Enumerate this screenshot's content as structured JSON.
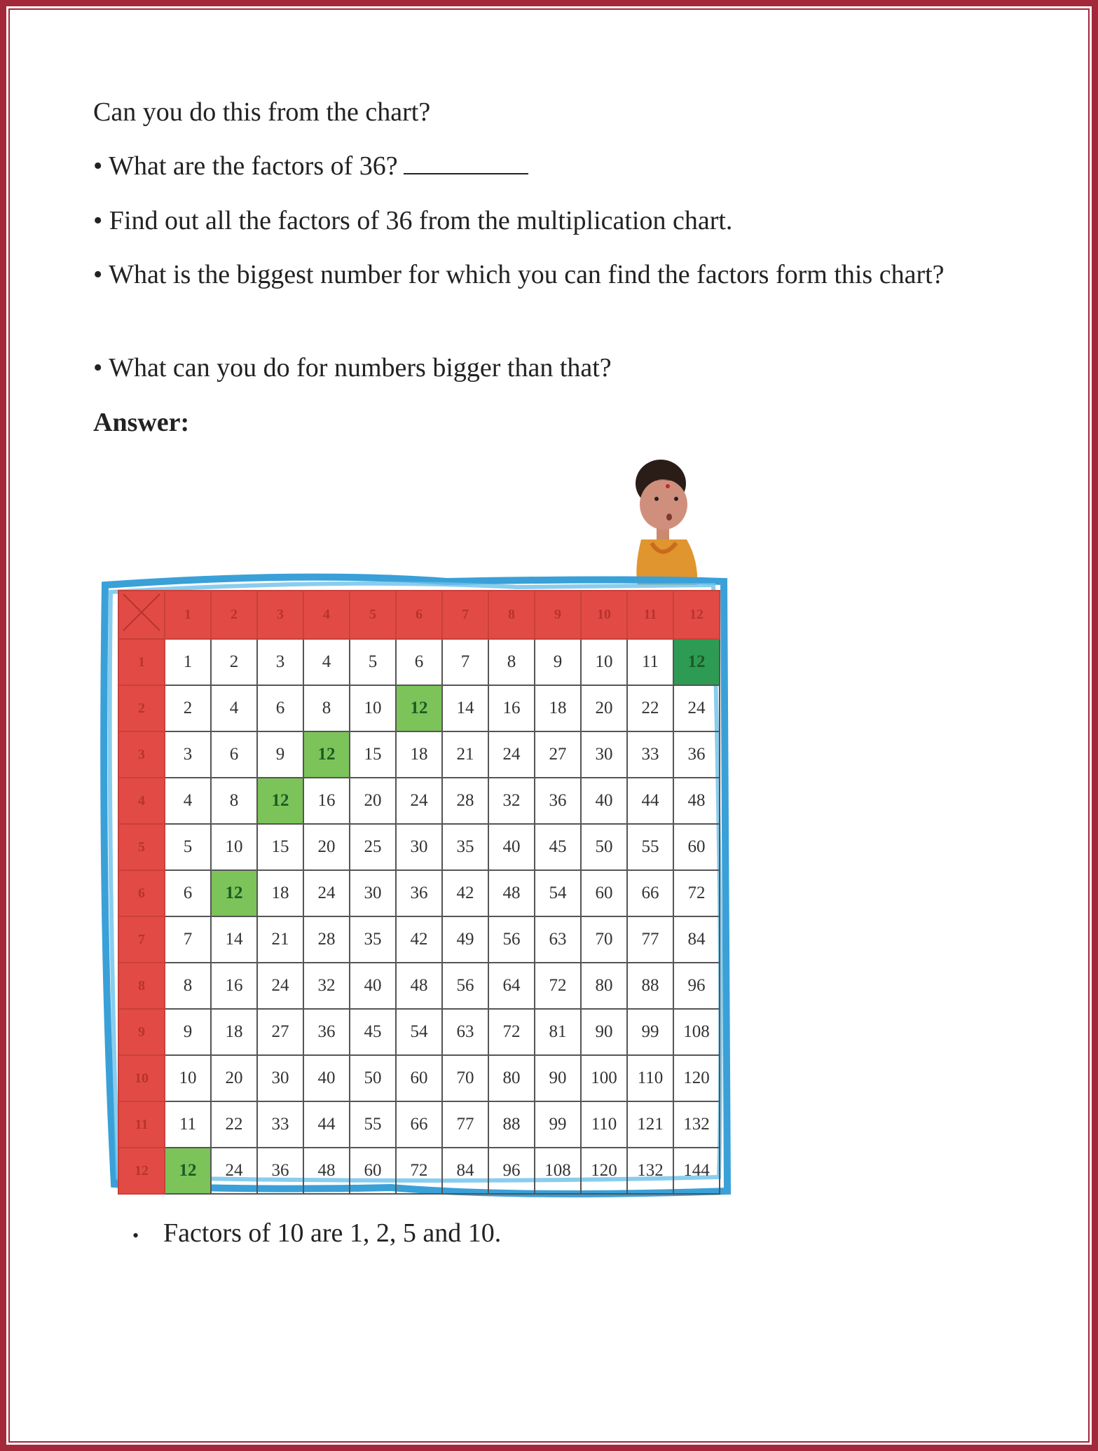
{
  "questions": {
    "intro": "Can you do this from the chart?",
    "items": [
      "• What are the factors of 36?",
      "• Find out all the factors of 36 from the multiplication chart.",
      "• What is the biggest number for which you can find the factors form this chart?",
      "• What can you do for numbers bigger than that?"
    ],
    "answer_label": "Answer:"
  },
  "chart": {
    "column_headers": [
      "1",
      "2",
      "3",
      "4",
      "5",
      "6",
      "7",
      "8",
      "9",
      "10",
      "11",
      "12"
    ],
    "row_headers": [
      "1",
      "2",
      "3",
      "4",
      "5",
      "6",
      "7",
      "8",
      "9",
      "10",
      "11",
      "12"
    ],
    "rows": [
      [
        "1",
        "2",
        "3",
        "4",
        "5",
        "6",
        "7",
        "8",
        "9",
        "10",
        "11",
        "12"
      ],
      [
        "2",
        "4",
        "6",
        "8",
        "10",
        "12",
        "14",
        "16",
        "18",
        "20",
        "22",
        "24"
      ],
      [
        "3",
        "6",
        "9",
        "12",
        "15",
        "18",
        "21",
        "24",
        "27",
        "30",
        "33",
        "36"
      ],
      [
        "4",
        "8",
        "12",
        "16",
        "20",
        "24",
        "28",
        "32",
        "36",
        "40",
        "44",
        "48"
      ],
      [
        "5",
        "10",
        "15",
        "20",
        "25",
        "30",
        "35",
        "40",
        "45",
        "50",
        "55",
        "60"
      ],
      [
        "6",
        "12",
        "18",
        "24",
        "30",
        "36",
        "42",
        "48",
        "54",
        "60",
        "66",
        "72"
      ],
      [
        "7",
        "14",
        "21",
        "28",
        "35",
        "42",
        "49",
        "56",
        "63",
        "70",
        "77",
        "84"
      ],
      [
        "8",
        "16",
        "24",
        "32",
        "40",
        "48",
        "56",
        "64",
        "72",
        "80",
        "88",
        "96"
      ],
      [
        "9",
        "18",
        "27",
        "36",
        "45",
        "54",
        "63",
        "72",
        "81",
        "90",
        "99",
        "108"
      ],
      [
        "10",
        "20",
        "30",
        "40",
        "50",
        "60",
        "70",
        "80",
        "90",
        "100",
        "110",
        "120"
      ],
      [
        "11",
        "22",
        "33",
        "44",
        "55",
        "66",
        "77",
        "88",
        "99",
        "110",
        "121",
        "132"
      ],
      [
        "12",
        "24",
        "36",
        "48",
        "60",
        "72",
        "84",
        "96",
        "108",
        "120",
        "132",
        "144"
      ]
    ],
    "highlighted_cells_light": [
      [
        2,
        6
      ],
      [
        3,
        4
      ],
      [
        4,
        3
      ],
      [
        6,
        2
      ],
      [
        12,
        1
      ]
    ],
    "highlighted_cells_dark": [
      [
        1,
        12
      ]
    ],
    "colors": {
      "header": "#e24b45",
      "highlight_light": "#7cc35a",
      "highlight_dark": "#2e9b55",
      "frame": "#3aa0d8"
    }
  },
  "answer": {
    "bullet": "•",
    "text": "Factors of 10 are 1, 2, 5 and 10."
  }
}
